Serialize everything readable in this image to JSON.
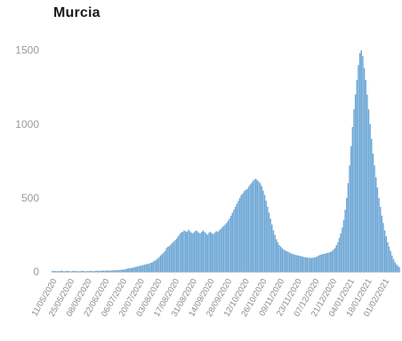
{
  "chart_data": {
    "type": "bar",
    "title": "Murcia",
    "xlabel": "",
    "ylabel": "",
    "ylim": [
      0,
      1600
    ],
    "yticks": [
      0,
      500,
      1000,
      1500
    ],
    "grid": false,
    "legend": "none",
    "bar_color": "#6fa8d6",
    "x_start": "11/05/2020",
    "x_end": "14/02/2021",
    "x_tick_labels": [
      "11/05/2020",
      "25/05/2020",
      "08/06/2020",
      "22/06/2020",
      "06/07/2020",
      "20/07/2020",
      "03/08/2020",
      "17/08/2020",
      "31/08/2020",
      "14/09/2020",
      "28/09/2020",
      "12/10/2020",
      "26/10/2020",
      "09/11/2020",
      "23/11/2020",
      "07/12/2020",
      "21/12/2020",
      "04/01/2021",
      "18/01/2021",
      "01/02/2021"
    ],
    "values": [
      5,
      4,
      6,
      3,
      5,
      4,
      7,
      5,
      3,
      4,
      6,
      5,
      4,
      3,
      5,
      6,
      4,
      5,
      3,
      4,
      5,
      6,
      4,
      3,
      5,
      4,
      6,
      5,
      4,
      5,
      6,
      7,
      5,
      6,
      8,
      7,
      6,
      8,
      9,
      7,
      8,
      10,
      9,
      11,
      10,
      12,
      11,
      13,
      15,
      14,
      18,
      20,
      22,
      25,
      24,
      28,
      30,
      32,
      35,
      38,
      40,
      42,
      45,
      48,
      50,
      55,
      52,
      60,
      62,
      70,
      75,
      80,
      90,
      100,
      110,
      120,
      130,
      140,
      160,
      170,
      175,
      185,
      195,
      205,
      215,
      225,
      240,
      255,
      265,
      270,
      280,
      275,
      270,
      285,
      275,
      265,
      260,
      270,
      280,
      275,
      265,
      260,
      270,
      280,
      270,
      260,
      250,
      265,
      270,
      260,
      255,
      265,
      275,
      270,
      280,
      290,
      300,
      310,
      320,
      330,
      345,
      360,
      380,
      400,
      420,
      440,
      460,
      480,
      500,
      520,
      530,
      545,
      555,
      560,
      575,
      590,
      600,
      615,
      625,
      630,
      620,
      610,
      600,
      580,
      550,
      520,
      480,
      440,
      400,
      360,
      320,
      280,
      250,
      220,
      200,
      180,
      170,
      160,
      150,
      145,
      140,
      135,
      130,
      125,
      120,
      118,
      115,
      112,
      110,
      108,
      105,
      102,
      100,
      98,
      96,
      95,
      94,
      93,
      95,
      97,
      100,
      105,
      110,
      115,
      118,
      120,
      122,
      125,
      128,
      130,
      135,
      140,
      150,
      160,
      180,
      200,
      230,
      260,
      300,
      350,
      420,
      500,
      600,
      720,
      850,
      980,
      1100,
      1200,
      1300,
      1400,
      1480,
      1500,
      1460,
      1380,
      1300,
      1200,
      1100,
      1000,
      900,
      800,
      720,
      640,
      570,
      500,
      440,
      380,
      330,
      280,
      240,
      200,
      170,
      140,
      110,
      85,
      65,
      50,
      40,
      30
    ]
  }
}
